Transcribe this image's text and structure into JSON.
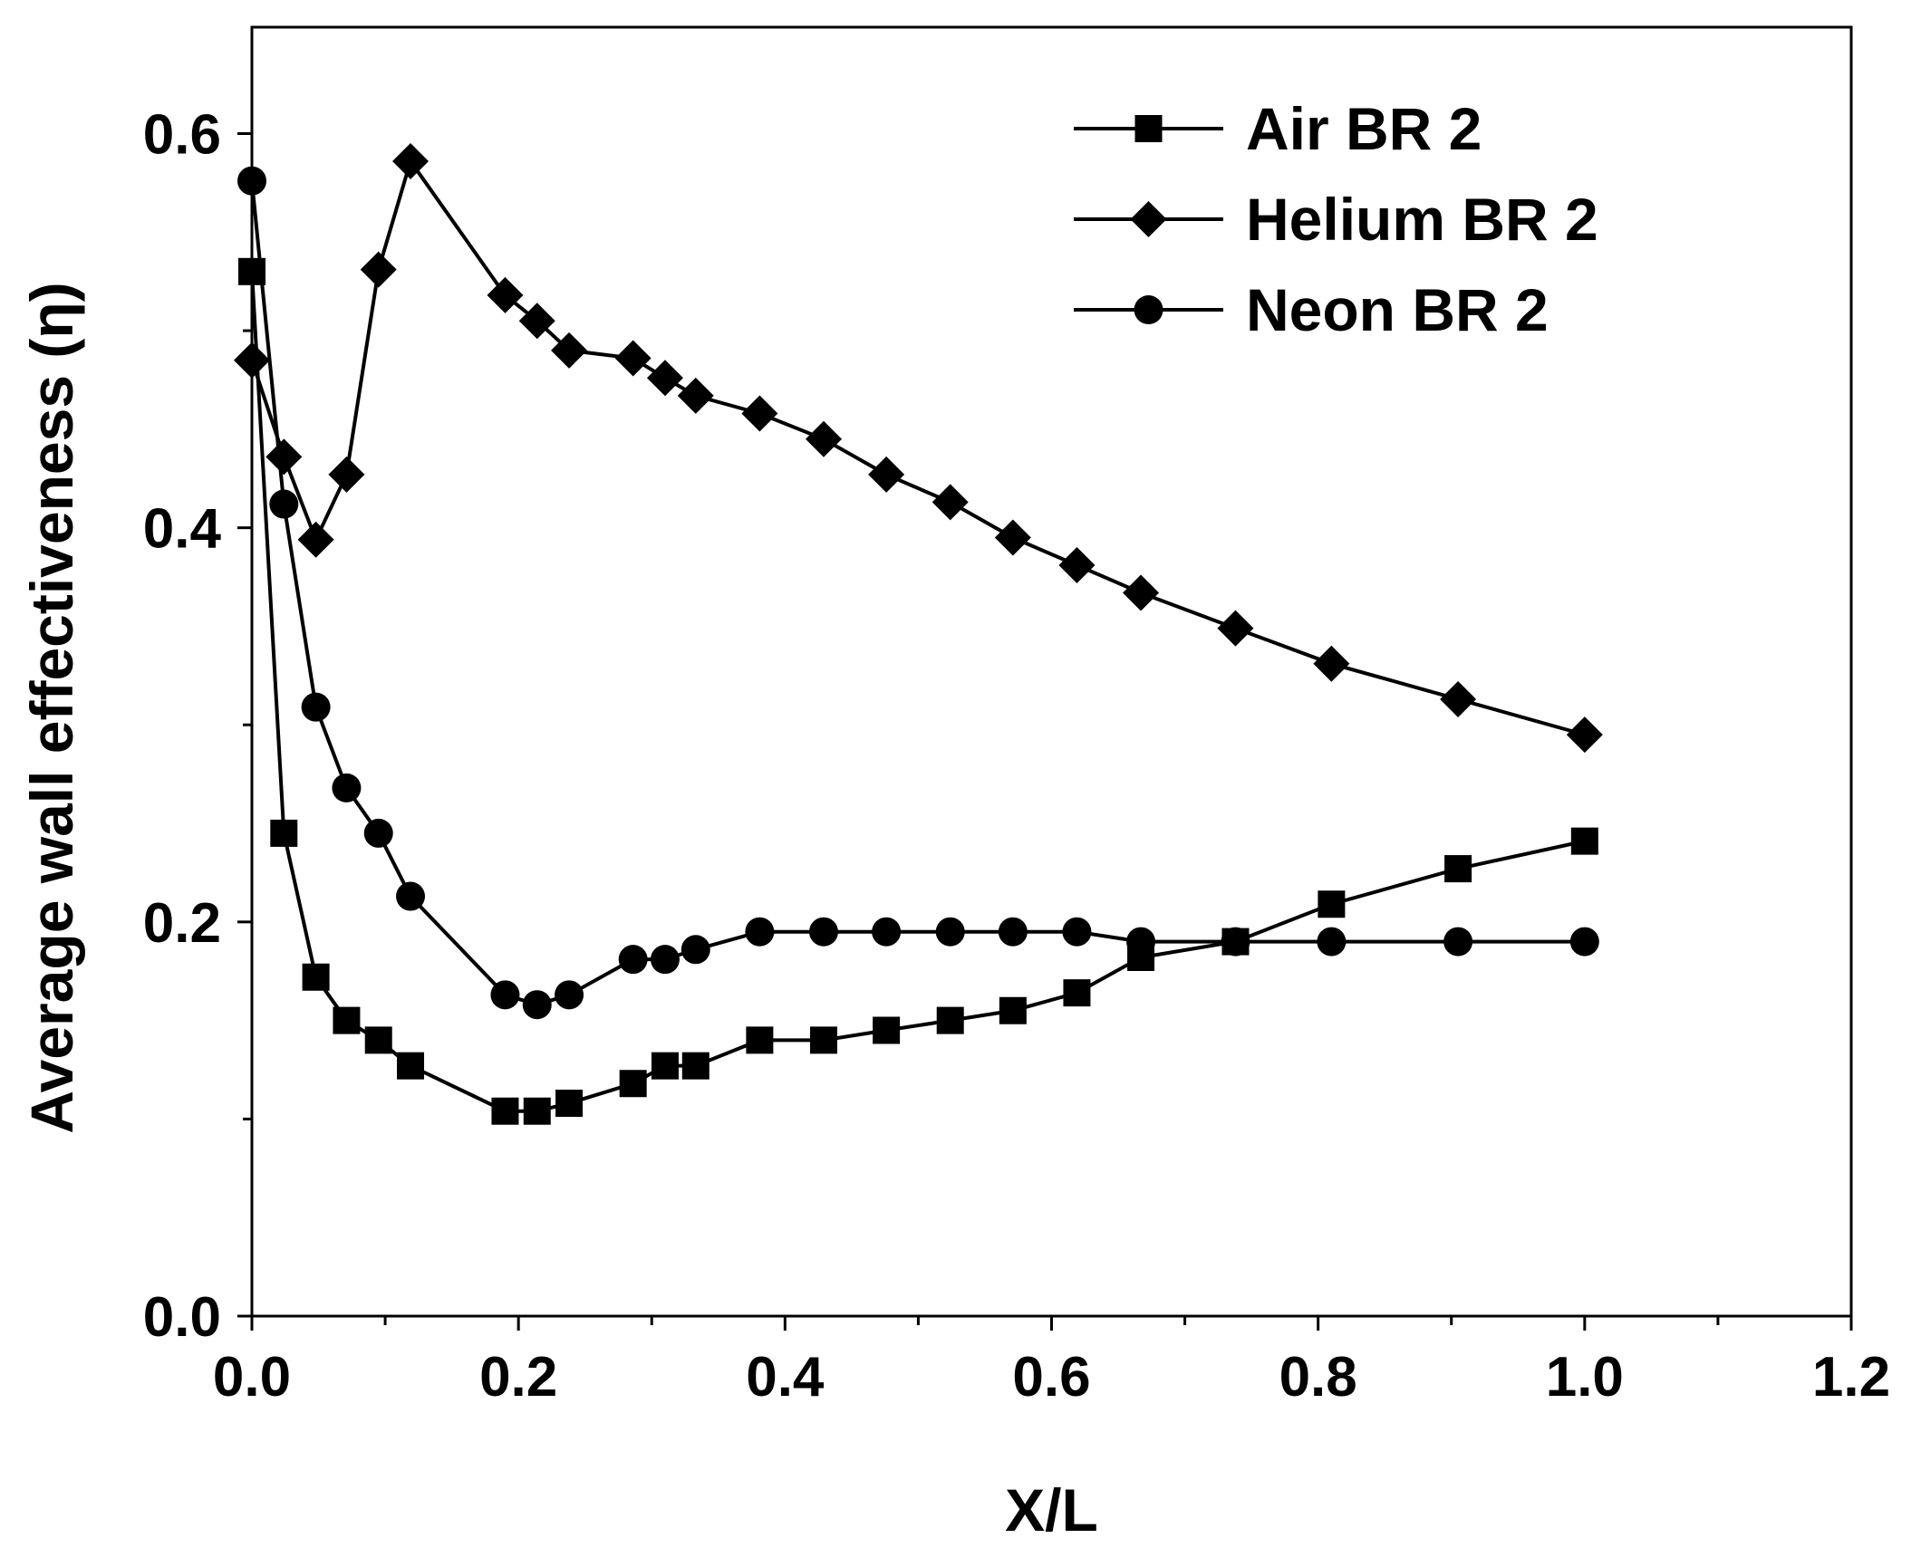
{
  "chart_data": {
    "type": "line",
    "xlabel": "X/L",
    "ylabel": "Average wall effectiveness (η)",
    "xlim": [
      0.0,
      1.2
    ],
    "ylim": [
      0.0,
      0.6
    ],
    "x_ticks": [
      "0.0",
      "0.2",
      "0.4",
      "0.6",
      "0.8",
      "1.0",
      "1.2"
    ],
    "y_ticks": [
      "0.0",
      "0.2",
      "0.4",
      "0.6"
    ],
    "grid": false,
    "legend_position": "top-right",
    "series": [
      {
        "name": "Air BR 2",
        "marker": "square",
        "x": [
          0.0,
          0.024,
          0.048,
          0.071,
          0.095,
          0.119,
          0.19,
          0.214,
          0.238,
          0.286,
          0.31,
          0.333,
          0.381,
          0.429,
          0.476,
          0.524,
          0.571,
          0.619,
          0.667,
          0.738,
          0.81,
          0.905,
          1.0
        ],
        "y": [
          0.53,
          0.245,
          0.172,
          0.15,
          0.14,
          0.127,
          0.104,
          0.104,
          0.108,
          0.118,
          0.127,
          0.127,
          0.14,
          0.14,
          0.145,
          0.15,
          0.155,
          0.164,
          0.182,
          0.19,
          0.209,
          0.227,
          0.241
        ]
      },
      {
        "name": "Helium BR 2",
        "marker": "diamond",
        "x": [
          0.0,
          0.024,
          0.048,
          0.071,
          0.095,
          0.119,
          0.19,
          0.214,
          0.238,
          0.286,
          0.31,
          0.333,
          0.381,
          0.429,
          0.476,
          0.524,
          0.571,
          0.619,
          0.667,
          0.738,
          0.81,
          0.905,
          1.0
        ],
        "y": [
          0.485,
          0.436,
          0.394,
          0.427,
          0.531,
          0.586,
          0.518,
          0.505,
          0.49,
          0.486,
          0.476,
          0.467,
          0.458,
          0.445,
          0.427,
          0.413,
          0.395,
          0.381,
          0.367,
          0.349,
          0.331,
          0.313,
          0.295
        ]
      },
      {
        "name": "Neon BR 2",
        "marker": "circle",
        "x": [
          0.0,
          0.024,
          0.048,
          0.071,
          0.095,
          0.119,
          0.19,
          0.214,
          0.238,
          0.286,
          0.31,
          0.333,
          0.381,
          0.429,
          0.476,
          0.524,
          0.571,
          0.619,
          0.667,
          0.738,
          0.81,
          0.905,
          1.0
        ],
        "y": [
          0.576,
          0.412,
          0.309,
          0.268,
          0.245,
          0.213,
          0.163,
          0.158,
          0.163,
          0.181,
          0.181,
          0.186,
          0.195,
          0.195,
          0.195,
          0.195,
          0.195,
          0.195,
          0.19,
          0.19,
          0.19,
          0.19,
          0.19
        ]
      }
    ]
  }
}
